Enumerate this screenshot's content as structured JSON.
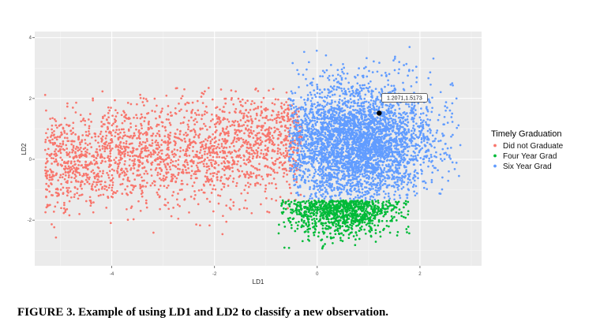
{
  "caption": "FIGURE 3. Example of using LD1 and LD2 to classify a new observation.",
  "chart_data": {
    "type": "scatter",
    "title": "",
    "xlabel": "LD1",
    "ylabel": "LD2",
    "xlim": [
      -5.5,
      3.2
    ],
    "ylim": [
      -3.5,
      4.2
    ],
    "xticks": [
      -4,
      -2,
      0,
      2
    ],
    "yticks": [
      -2,
      0,
      2,
      4
    ],
    "xtick_labels": [
      "-4",
      "-2",
      "0",
      "2"
    ],
    "ytick_labels": [
      "-2",
      "0",
      "2",
      "4"
    ],
    "grid": true,
    "background": "#ebebeb",
    "legend": {
      "title": "Timely Graduation",
      "position": "right"
    },
    "series": [
      {
        "name": "Did not Graduate",
        "color": "#f8766d",
        "region": {
          "x_range": [
            -5.3,
            -0.3
          ],
          "y_range": [
            -2.6,
            2.3
          ]
        }
      },
      {
        "name": "Four Year Grad",
        "color": "#00ba38",
        "region": {
          "x_range": [
            -0.7,
            1.8
          ],
          "y_range": [
            -3.2,
            -1.35
          ]
        }
      },
      {
        "name": "Six Year Grad",
        "color": "#619cff",
        "region": {
          "x_range": [
            -0.6,
            2.7
          ],
          "y_range": [
            -1.35,
            4.0
          ]
        }
      }
    ],
    "highlight_point": {
      "x": 1.2071,
      "y": 1.5173,
      "label": "1.2071,1.5173",
      "color": "#000000"
    }
  }
}
